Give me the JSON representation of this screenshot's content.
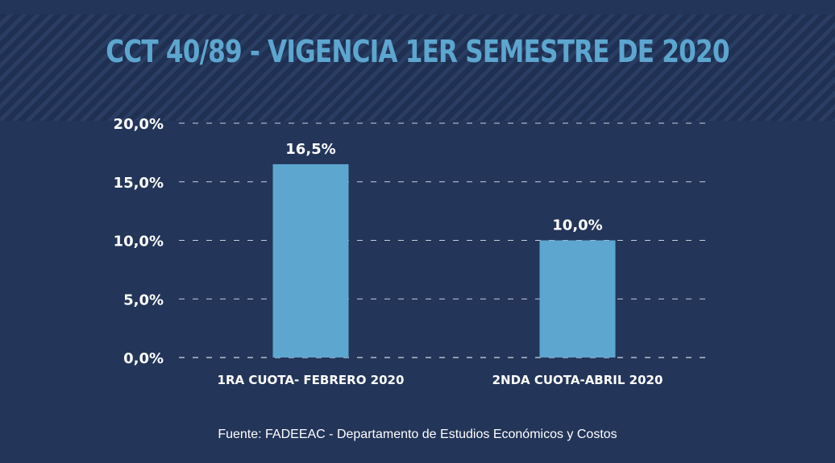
{
  "title": "CCT 40/89 - VIGENCIA 1ER SEMESTRE DE 2020",
  "source": "Fuente: FADEEAC - Departamento de Estudios Económicos y Costos",
  "colors": {
    "background": "#233559",
    "bar": "#5da6cf",
    "title": "#5da6cf",
    "text": "#ffffff"
  },
  "chart_data": {
    "type": "bar",
    "title": "CCT 40/89 - VIGENCIA 1ER SEMESTRE DE 2020",
    "categories": [
      "1RA CUOTA- FEBRERO 2020",
      "2NDA CUOTA-ABRIL 2020"
    ],
    "values": [
      16.5,
      10.0
    ],
    "value_labels": [
      "16,5%",
      "10,0%"
    ],
    "ylim": [
      0,
      20
    ],
    "yticks": [
      0,
      5,
      10,
      15,
      20
    ],
    "ytick_labels": [
      "0,0%",
      "5,0%",
      "10,0%",
      "15,0%",
      "20,0%"
    ],
    "grid": "dashed horizontal",
    "legend": "none"
  }
}
